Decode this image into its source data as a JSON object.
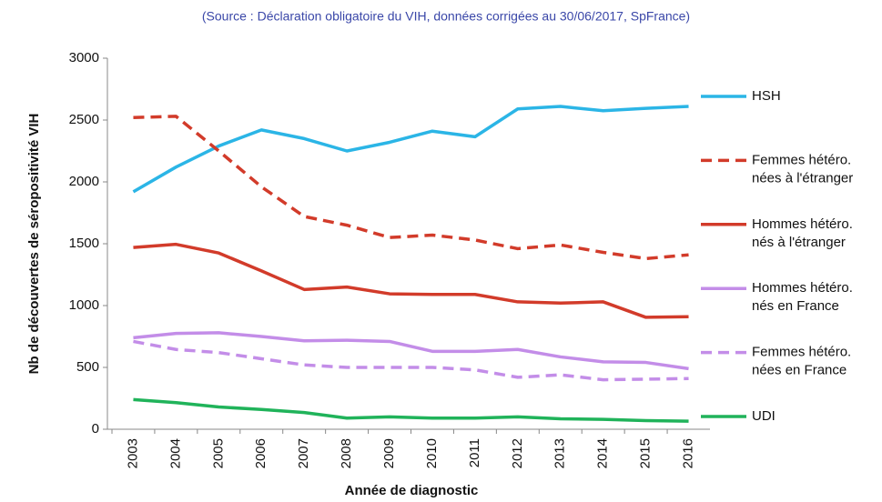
{
  "chart_data": {
    "type": "line",
    "subtitle": "(Source : Déclaration obligatoire du VIH, données corrigées au 30/06/2017, SpFrance)",
    "x_label": "Année de diagnostic",
    "y_label": "Nb de découvertes de séropositivité VIH",
    "categories": [
      "2003",
      "2004",
      "2005",
      "2006",
      "2007",
      "2008",
      "2009",
      "2010",
      "2011",
      "2012",
      "2013",
      "2014",
      "2015",
      "2016"
    ],
    "ylim": [
      0,
      3000
    ],
    "yticks": [
      0,
      500,
      1000,
      1500,
      2000,
      2500,
      3000
    ],
    "grid": false,
    "legend": "right",
    "series": [
      {
        "name": "HSH",
        "color": "#2bb5e6",
        "style": "solid",
        "values": [
          1920,
          2120,
          2290,
          2420,
          2350,
          2250,
          2320,
          2410,
          2365,
          2590,
          2610,
          2575,
          2595,
          2610
        ]
      },
      {
        "name": "Femmes hétéro. nées à l'étranger",
        "color": "#d23b2a",
        "style": "dashed",
        "values": [
          2520,
          2530,
          2250,
          1960,
          1720,
          1650,
          1550,
          1570,
          1530,
          1460,
          1490,
          1430,
          1380,
          1410
        ]
      },
      {
        "name": "Hommes hétéro. nés à l'étranger",
        "color": "#d23b2a",
        "style": "solid",
        "values": [
          1470,
          1495,
          1425,
          1280,
          1130,
          1150,
          1095,
          1090,
          1090,
          1030,
          1020,
          1030,
          905,
          910
        ]
      },
      {
        "name": "Hommes hétéro. nés en France",
        "color": "#c38de8",
        "style": "solid",
        "values": [
          740,
          775,
          780,
          750,
          715,
          720,
          710,
          630,
          630,
          645,
          585,
          545,
          540,
          490
        ]
      },
      {
        "name": "Femmes hétéro. nées en France",
        "color": "#c38de8",
        "style": "dashed",
        "values": [
          710,
          645,
          620,
          570,
          520,
          500,
          500,
          500,
          480,
          420,
          440,
          400,
          405,
          410
        ]
      },
      {
        "name": "UDI",
        "color": "#20b35a",
        "style": "solid",
        "values": [
          240,
          215,
          180,
          160,
          135,
          90,
          100,
          90,
          90,
          100,
          85,
          80,
          70,
          65
        ]
      }
    ]
  }
}
